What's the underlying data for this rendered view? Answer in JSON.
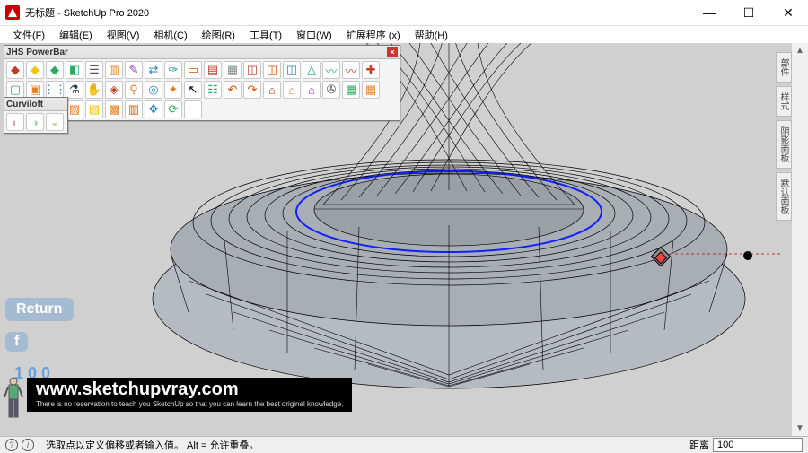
{
  "window": {
    "title": "无标题 - SketchUp Pro 2020",
    "minimize": "—",
    "maximize": "☐",
    "close": "✕"
  },
  "menu": {
    "items": [
      "文件(F)",
      "编辑(E)",
      "视图(V)",
      "相机(C)",
      "绘图(R)",
      "工具(T)",
      "窗口(W)",
      "扩展程序 (x)",
      "帮助(H)"
    ]
  },
  "palettes": {
    "jhs": {
      "title": "JHS PowerBar",
      "icons": [
        {
          "name": "cube-red-icon",
          "glyph": "◆",
          "color": "#c0392b"
        },
        {
          "name": "cube-yellow-icon",
          "glyph": "◆",
          "color": "#f1c40f"
        },
        {
          "name": "cube-green-icon",
          "glyph": "◆",
          "color": "#27ae60"
        },
        {
          "name": "cube-add-icon",
          "glyph": "◧",
          "color": "#27ae60"
        },
        {
          "name": "layer-icon",
          "glyph": "☰",
          "color": "#555"
        },
        {
          "name": "page-icon",
          "glyph": "▥",
          "color": "#e67e22"
        },
        {
          "name": "brush-icon",
          "glyph": "✎",
          "color": "#8e44ad"
        },
        {
          "name": "swap-icon",
          "glyph": "⇄",
          "color": "#2980b9"
        },
        {
          "name": "picker-icon",
          "glyph": "✑",
          "color": "#16a085"
        },
        {
          "name": "folder-icon",
          "glyph": "▭",
          "color": "#d35400"
        },
        {
          "name": "save-icon",
          "glyph": "▤",
          "color": "#c0392b"
        },
        {
          "name": "grid-icon",
          "glyph": "▦",
          "color": "#7f8c8d"
        },
        {
          "name": "box-red-icon",
          "glyph": "◫",
          "color": "#c0392b"
        },
        {
          "name": "box-orange-icon",
          "glyph": "◫",
          "color": "#d35400"
        },
        {
          "name": "box-blue-icon",
          "glyph": "◫",
          "color": "#2980b9"
        },
        {
          "name": "triangle-icon",
          "glyph": "△",
          "color": "#16a085"
        },
        {
          "name": "wave-green-icon",
          "glyph": "〰",
          "color": "#27ae60"
        },
        {
          "name": "wave-red-icon",
          "glyph": "〰",
          "color": "#c0392b"
        },
        {
          "name": "plus-icon",
          "glyph": "✚",
          "color": "#c0392b"
        },
        {
          "name": "square-green-icon",
          "glyph": "▢",
          "color": "#27ae60"
        },
        {
          "name": "select-icon",
          "glyph": "▣",
          "color": "#e67e22"
        },
        {
          "name": "dots-icon",
          "glyph": "⋮⋮",
          "color": "#2980b9"
        },
        {
          "name": "flask-icon",
          "glyph": "⚗",
          "color": "#2c3e50"
        },
        {
          "name": "hand-icon",
          "glyph": "✋",
          "color": "#e67e22"
        },
        {
          "name": "ruby-icon",
          "glyph": "◈",
          "color": "#c0392b"
        },
        {
          "name": "link-icon",
          "glyph": "⚲",
          "color": "#e67e22"
        },
        {
          "name": "target-icon",
          "glyph": "◎",
          "color": "#2980b9"
        },
        {
          "name": "star-icon",
          "glyph": "✦",
          "color": "#e67e22"
        },
        {
          "name": "cursor-icon",
          "glyph": "↖",
          "color": "#000"
        },
        {
          "name": "layers2-icon",
          "glyph": "☷",
          "color": "#27ae60"
        },
        {
          "name": "undo-icon",
          "glyph": "↶",
          "color": "#d35400"
        },
        {
          "name": "redo-icon",
          "glyph": "↷",
          "color": "#d35400"
        },
        {
          "name": "house1-icon",
          "glyph": "⌂",
          "color": "#c0392b"
        },
        {
          "name": "house2-icon",
          "glyph": "⌂",
          "color": "#e67e22"
        },
        {
          "name": "house3-icon",
          "glyph": "⌂",
          "color": "#8e44ad"
        },
        {
          "name": "disk-icon",
          "glyph": "✇",
          "color": "#555"
        },
        {
          "name": "tile1-icon",
          "glyph": "▦",
          "color": "#27ae60"
        },
        {
          "name": "tile2-icon",
          "glyph": "▦",
          "color": "#e67e22"
        },
        {
          "name": "tile3-icon",
          "glyph": "▦",
          "color": "#c0392b"
        },
        {
          "name": "tile4-icon",
          "glyph": "▦",
          "color": "#d35400"
        },
        {
          "name": "tile5-icon",
          "glyph": "▦",
          "color": "#27ae60"
        },
        {
          "name": "fill1-icon",
          "glyph": "▨",
          "color": "#e67e22"
        },
        {
          "name": "fill2-icon",
          "glyph": "▧",
          "color": "#f1c40f"
        },
        {
          "name": "fill3-icon",
          "glyph": "▩",
          "color": "#e67e22"
        },
        {
          "name": "fill4-icon",
          "glyph": "▥",
          "color": "#d35400"
        },
        {
          "name": "move-icon",
          "glyph": "✥",
          "color": "#2980b9"
        },
        {
          "name": "reload-icon",
          "glyph": "⟳",
          "color": "#27ae60"
        },
        {
          "name": "blank1-icon",
          "glyph": "",
          "color": "#000"
        }
      ]
    },
    "curviloft": {
      "title": "Curviloft",
      "icons": [
        {
          "name": "loft1-icon",
          "glyph": "◐",
          "color": "#caa"
        },
        {
          "name": "loft2-icon",
          "glyph": "◑",
          "color": "#aca"
        },
        {
          "name": "loft3-icon",
          "glyph": "◒",
          "color": "#cca"
        }
      ]
    }
  },
  "side_tabs": [
    "部件",
    "样式",
    "阴影面板",
    "默认面板"
  ],
  "overlays": {
    "return": "Return",
    "f": "f",
    "num": "1 0 0"
  },
  "watermark": {
    "url": "www.sketchupvray.com",
    "sub": "There is no reservation to teach you SketchUp so that you can learn the best original knowledge."
  },
  "status": {
    "hint": "选取点以定义偏移或者输入值。  Alt = 允许重叠。",
    "distance_label": "距离",
    "distance_value": "100"
  },
  "viewport": {
    "background": "#d0d0d0",
    "line_color": "#000000",
    "highlight_color": "#1020ff",
    "surface_color": "#9aa0a6"
  }
}
